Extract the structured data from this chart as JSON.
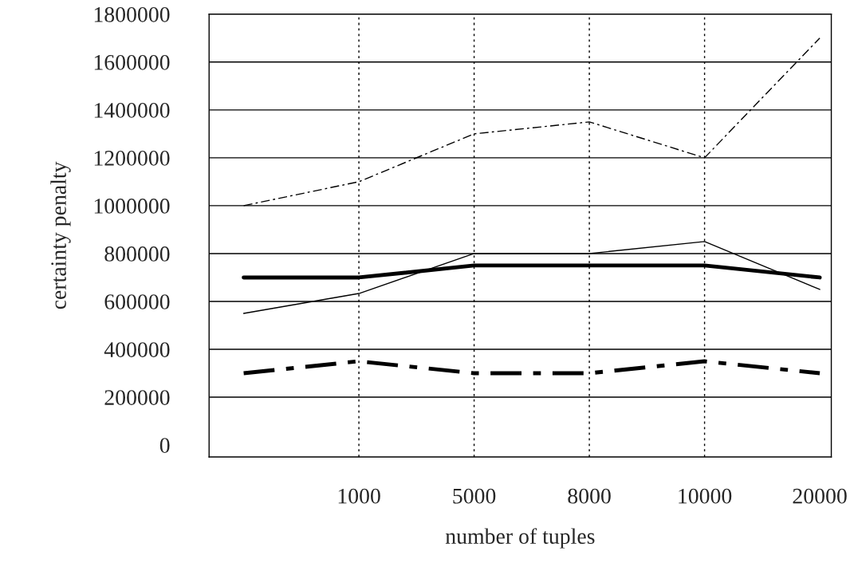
{
  "chart_data": {
    "type": "line",
    "xlabel": "number of tuples",
    "ylabel": "certainty penalty",
    "categories": [
      null,
      "1000",
      "5000",
      "8000",
      "10000",
      "20000"
    ],
    "ylim": [
      -50000,
      1800000
    ],
    "yticks": [
      0,
      200000,
      400000,
      600000,
      800000,
      1000000,
      1200000,
      1400000,
      1600000,
      1800000
    ],
    "ref_lines": [
      {
        "axis": "x",
        "value": "1000",
        "color": "#000000",
        "line_style": "dotted"
      },
      {
        "axis": "x",
        "value": "5000",
        "color": "#000000",
        "line_style": "dotted"
      },
      {
        "axis": "x",
        "value": "8000",
        "color": "#000000",
        "line_style": "dotted"
      },
      {
        "axis": "x",
        "value": "10000",
        "color": "#000000",
        "line_style": "dotted"
      },
      {
        "axis": "y",
        "value": 200000,
        "color": "#000000",
        "line_style": "solid"
      },
      {
        "axis": "y",
        "value": 400000,
        "color": "#000000",
        "line_style": "solid"
      },
      {
        "axis": "y",
        "value": 600000,
        "color": "#000000",
        "line_style": "solid"
      },
      {
        "axis": "y",
        "value": 800000,
        "color": "#000000",
        "line_style": "solid"
      },
      {
        "axis": "y",
        "value": 1000000,
        "color": "#000000",
        "line_style": "solid"
      },
      {
        "axis": "y",
        "value": 1200000,
        "color": "#000000",
        "line_style": "solid"
      },
      {
        "axis": "y",
        "value": 1400000,
        "color": "#000000",
        "line_style": "solid"
      },
      {
        "axis": "y",
        "value": 1600000,
        "color": "#000000",
        "line_style": "solid"
      }
    ],
    "marker": "none",
    "series": [
      {
        "color": "#000000",
        "line_style": "dashed",
        "values": [
          1000000,
          1100000,
          1300000,
          1350000,
          1200000,
          1700000
        ]
      },
      {
        "color": "#000000",
        "line_style": "solid",
        "values": [
          550000,
          633000,
          800000,
          800000,
          850000,
          650000
        ]
      },
      {
        "color": "#000000",
        "line_style": "solid",
        "values": [
          700000,
          700000,
          750000,
          750000,
          750000,
          700000
        ]
      },
      {
        "color": "#000000",
        "line_style": "dashed",
        "values": [
          300000,
          350000,
          300000,
          300000,
          350000,
          300000
        ]
      }
    ]
  }
}
